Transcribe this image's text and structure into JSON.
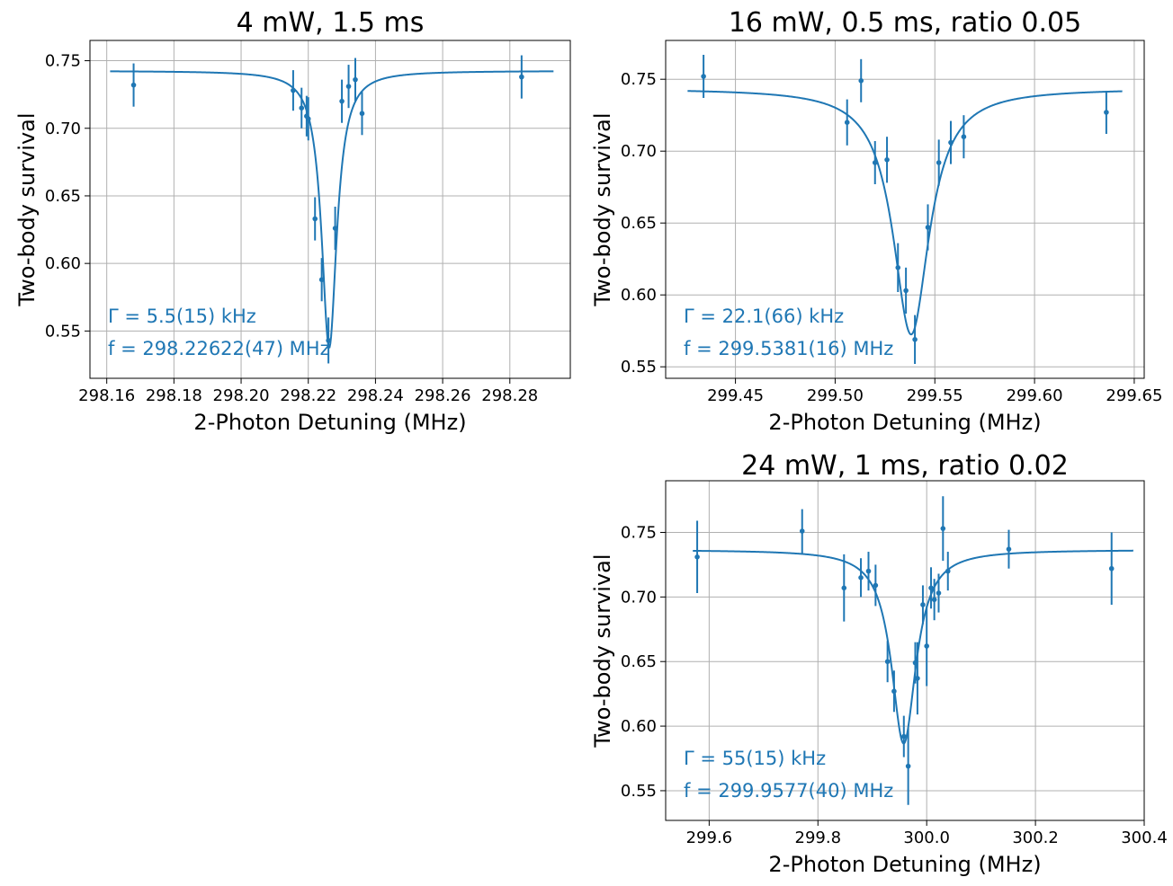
{
  "chart_data": [
    {
      "type": "scatter",
      "title": "4 mW, 1.5 ms",
      "xlabel": "2-Photon Detuning (MHz)",
      "ylabel": "Two-body survival",
      "xlim": [
        298.155,
        298.298
      ],
      "ylim": [
        0.515,
        0.765
      ],
      "xticks": [
        298.16,
        298.18,
        298.2,
        298.22,
        298.24,
        298.26,
        298.28
      ],
      "xtick_labels": [
        "298.16",
        "298.18",
        "298.20",
        "298.22",
        "298.24",
        "298.26",
        "298.28"
      ],
      "yticks": [
        0.55,
        0.6,
        0.65,
        0.7,
        0.75
      ],
      "ytick_labels": [
        "0.55",
        "0.60",
        "0.65",
        "0.70",
        "0.75"
      ],
      "grid": true,
      "annotations": [
        "Γ = 5.5(15) kHz",
        "f = 298.22622(47) MHz"
      ],
      "fit": {
        "model": "lorentzian",
        "center": 298.22622,
        "fwhm": 0.0055,
        "baseline": 0.7425,
        "depth": 0.205,
        "x_range": [
          298.161,
          298.293
        ]
      },
      "points": [
        {
          "x": 298.168,
          "y": 0.732,
          "err": 0.016
        },
        {
          "x": 298.2155,
          "y": 0.728,
          "err": 0.015
        },
        {
          "x": 298.218,
          "y": 0.715,
          "err": 0.015
        },
        {
          "x": 298.2195,
          "y": 0.709,
          "err": 0.015
        },
        {
          "x": 298.22,
          "y": 0.707,
          "err": 0.016
        },
        {
          "x": 298.222,
          "y": 0.633,
          "err": 0.016
        },
        {
          "x": 298.224,
          "y": 0.588,
          "err": 0.016
        },
        {
          "x": 298.226,
          "y": 0.543,
          "err": 0.017
        },
        {
          "x": 298.228,
          "y": 0.626,
          "err": 0.016
        },
        {
          "x": 298.23,
          "y": 0.72,
          "err": 0.016
        },
        {
          "x": 298.232,
          "y": 0.731,
          "err": 0.016
        },
        {
          "x": 298.234,
          "y": 0.736,
          "err": 0.016
        },
        {
          "x": 298.236,
          "y": 0.711,
          "err": 0.016
        },
        {
          "x": 298.2835,
          "y": 0.738,
          "err": 0.016
        }
      ]
    },
    {
      "type": "scatter",
      "title": "16 mW, 0.5 ms, ratio 0.05",
      "xlabel": "2-Photon Detuning (MHz)",
      "ylabel": "Two-body survival",
      "xlim": [
        299.415,
        299.655
      ],
      "ylim": [
        0.542,
        0.777
      ],
      "xticks": [
        299.45,
        299.5,
        299.55,
        299.6,
        299.65
      ],
      "xtick_labels": [
        "299.45",
        "299.50",
        "299.55",
        "299.60",
        "299.65"
      ],
      "yticks": [
        0.55,
        0.6,
        0.65,
        0.7,
        0.75
      ],
      "ytick_labels": [
        "0.55",
        "0.60",
        "0.65",
        "0.70",
        "0.75"
      ],
      "grid": true,
      "annotations": [
        "Γ = 22.1(66) kHz",
        "f = 299.5381(16) MHz"
      ],
      "fit": {
        "model": "lorentzian",
        "center": 299.5381,
        "fwhm": 0.0221,
        "baseline": 0.7435,
        "depth": 0.171,
        "x_range": [
          299.426,
          299.644
        ]
      },
      "points": [
        {
          "x": 299.434,
          "y": 0.752,
          "err": 0.015
        },
        {
          "x": 299.506,
          "y": 0.72,
          "err": 0.016
        },
        {
          "x": 299.513,
          "y": 0.749,
          "err": 0.015
        },
        {
          "x": 299.52,
          "y": 0.692,
          "err": 0.015
        },
        {
          "x": 299.526,
          "y": 0.694,
          "err": 0.016
        },
        {
          "x": 299.5315,
          "y": 0.619,
          "err": 0.017
        },
        {
          "x": 299.5355,
          "y": 0.603,
          "err": 0.016
        },
        {
          "x": 299.54,
          "y": 0.569,
          "err": 0.017
        },
        {
          "x": 299.5465,
          "y": 0.647,
          "err": 0.016
        },
        {
          "x": 299.552,
          "y": 0.692,
          "err": 0.016
        },
        {
          "x": 299.558,
          "y": 0.706,
          "err": 0.015
        },
        {
          "x": 299.5645,
          "y": 0.71,
          "err": 0.015
        },
        {
          "x": 299.636,
          "y": 0.727,
          "err": 0.015
        }
      ]
    },
    {
      "type": "scatter",
      "title": "24 mW, 1 ms, ratio 0.02",
      "xlabel": "2-Photon Detuning (MHz)",
      "ylabel": "Two-body survival",
      "xlim": [
        299.52,
        300.4
      ],
      "ylim": [
        0.527,
        0.79
      ],
      "xticks": [
        299.6,
        299.8,
        300.0,
        300.2,
        300.4
      ],
      "xtick_labels": [
        "299.6",
        "299.8",
        "300.0",
        "300.2",
        "300.4"
      ],
      "yticks": [
        0.55,
        0.6,
        0.65,
        0.7,
        0.75
      ],
      "ytick_labels": [
        "0.55",
        "0.60",
        "0.65",
        "0.70",
        "0.75"
      ],
      "grid": true,
      "annotations": [
        "Γ = 55(15) kHz",
        "f = 299.9577(40) MHz"
      ],
      "fit": {
        "model": "lorentzian",
        "center": 299.9577,
        "fwhm": 0.055,
        "baseline": 0.7365,
        "depth": 0.15,
        "x_range": [
          299.57,
          300.38
        ]
      },
      "points": [
        {
          "x": 299.578,
          "y": 0.731,
          "err": 0.028
        },
        {
          "x": 299.771,
          "y": 0.751,
          "err": 0.017
        },
        {
          "x": 299.848,
          "y": 0.707,
          "err": 0.026
        },
        {
          "x": 299.879,
          "y": 0.715,
          "err": 0.015
        },
        {
          "x": 299.893,
          "y": 0.72,
          "err": 0.015
        },
        {
          "x": 299.906,
          "y": 0.709,
          "err": 0.016
        },
        {
          "x": 299.928,
          "y": 0.65,
          "err": 0.016
        },
        {
          "x": 299.94,
          "y": 0.627,
          "err": 0.016
        },
        {
          "x": 299.958,
          "y": 0.592,
          "err": 0.016
        },
        {
          "x": 299.966,
          "y": 0.569,
          "err": 0.03
        },
        {
          "x": 299.979,
          "y": 0.649,
          "err": 0.016
        },
        {
          "x": 299.983,
          "y": 0.637,
          "err": 0.028
        },
        {
          "x": 299.993,
          "y": 0.694,
          "err": 0.015
        },
        {
          "x": 300.0,
          "y": 0.662,
          "err": 0.031
        },
        {
          "x": 300.008,
          "y": 0.707,
          "err": 0.016
        },
        {
          "x": 300.014,
          "y": 0.698,
          "err": 0.016
        },
        {
          "x": 300.022,
          "y": 0.703,
          "err": 0.015
        },
        {
          "x": 300.03,
          "y": 0.753,
          "err": 0.025
        },
        {
          "x": 300.039,
          "y": 0.72,
          "err": 0.015
        },
        {
          "x": 300.151,
          "y": 0.737,
          "err": 0.015
        },
        {
          "x": 300.34,
          "y": 0.722,
          "err": 0.028
        }
      ]
    }
  ]
}
